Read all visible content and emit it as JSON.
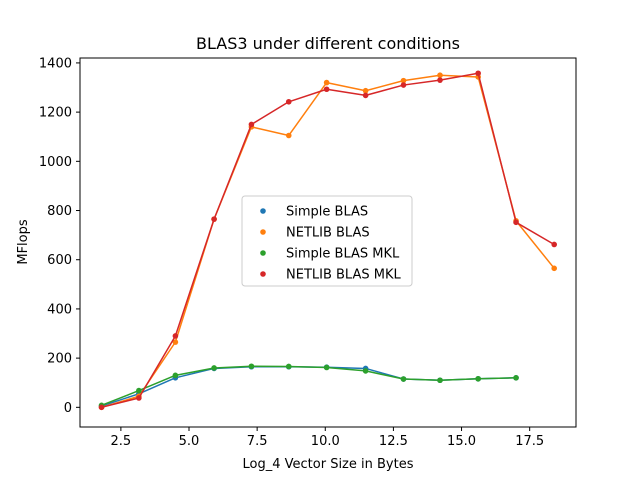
{
  "chart_data": {
    "type": "line",
    "title": "BLAS3 under different conditions",
    "xlabel": "Log_4 Vector Size in Bytes",
    "ylabel": "MFlops",
    "xlim": [
      1.0,
      19.2
    ],
    "ylim": [
      -80,
      1420
    ],
    "xticks": [
      2.5,
      5.0,
      7.5,
      10.0,
      12.5,
      15.0,
      17.5
    ],
    "xtick_labels": [
      "2.5",
      "5.0",
      "7.5",
      "10.0",
      "12.5",
      "15.0",
      "17.5"
    ],
    "yticks": [
      0,
      200,
      400,
      600,
      800,
      1000,
      1200,
      1400
    ],
    "ytick_labels": [
      "0",
      "200",
      "400",
      "600",
      "800",
      "1000",
      "1200",
      "1400"
    ],
    "grid": false,
    "legend_position": "center",
    "series": [
      {
        "name": "Simple BLAS",
        "color": "#1f77b4",
        "x": [
          1.79,
          3.16,
          4.5,
          5.92,
          7.29,
          8.66,
          10.05,
          11.48,
          12.87,
          14.21,
          15.61,
          17.0
        ],
        "y": [
          5,
          55,
          120,
          158,
          165,
          165,
          163,
          158,
          115,
          110,
          116,
          120
        ]
      },
      {
        "name": "NETLIB BLAS",
        "color": "#ff7f0e",
        "x": [
          1.79,
          3.16,
          4.5,
          5.92,
          7.29,
          8.66,
          10.05,
          11.48,
          12.87,
          14.21,
          15.61,
          17.0,
          18.4
        ],
        "y": [
          0,
          45,
          265,
          765,
          1140,
          1105,
          1320,
          1287,
          1328,
          1350,
          1343,
          758,
          565
        ]
      },
      {
        "name": "Simple BLAS MKL",
        "color": "#2ca02c",
        "x": [
          1.79,
          3.16,
          4.5,
          5.92,
          7.29,
          8.66,
          10.05,
          11.48,
          12.87,
          14.21,
          15.61,
          17.0
        ],
        "y": [
          8,
          68,
          130,
          160,
          167,
          166,
          162,
          148,
          115,
          110,
          116,
          120
        ]
      },
      {
        "name": "NETLIB BLAS MKL",
        "color": "#d62728",
        "x": [
          1.79,
          3.16,
          4.5,
          5.92,
          7.29,
          8.66,
          10.05,
          11.48,
          12.87,
          14.21,
          15.61,
          17.0,
          18.4
        ],
        "y": [
          0,
          38,
          290,
          765,
          1150,
          1242,
          1293,
          1268,
          1310,
          1330,
          1358,
          752,
          662
        ]
      }
    ]
  }
}
